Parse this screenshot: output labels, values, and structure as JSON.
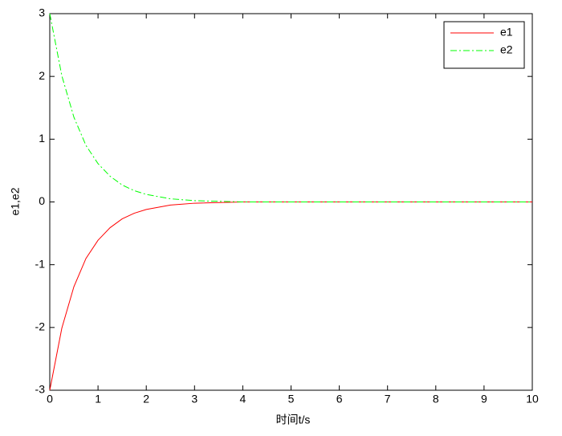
{
  "chart_data": {
    "type": "line",
    "xlabel": "时间t/s",
    "ylabel": "e1,e2",
    "x": [
      0,
      0.25,
      0.5,
      0.75,
      1,
      1.25,
      1.5,
      1.75,
      2,
      2.5,
      3,
      4,
      5,
      6,
      7,
      8,
      9,
      10
    ],
    "series": [
      {
        "name": "e1",
        "color": "#ff0000",
        "dash": "solid",
        "values": [
          -3,
          -2.01,
          -1.35,
          -0.9,
          -0.61,
          -0.41,
          -0.27,
          -0.18,
          -0.12,
          -0.05,
          -0.02,
          0,
          0,
          0,
          0,
          0,
          0,
          0
        ]
      },
      {
        "name": "e2",
        "color": "#00ff00",
        "dash": "dashdot",
        "values": [
          3,
          2.01,
          1.35,
          0.9,
          0.61,
          0.41,
          0.27,
          0.18,
          0.12,
          0.05,
          0.02,
          0,
          0,
          0,
          0,
          0,
          0,
          0
        ]
      }
    ],
    "xlim": [
      0,
      10
    ],
    "xticks": [
      0,
      1,
      2,
      3,
      4,
      5,
      6,
      7,
      8,
      9,
      10
    ],
    "ylim": [
      -3,
      3
    ],
    "yticks": [
      -3,
      -2,
      -1,
      0,
      1,
      2,
      3
    ],
    "grid": false,
    "legend": "northeast"
  }
}
